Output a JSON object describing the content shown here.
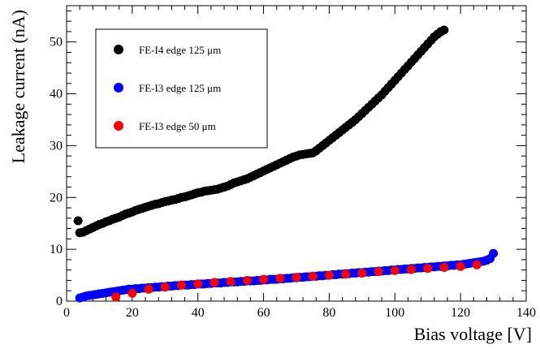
{
  "chart_data": {
    "type": "scatter",
    "xlabel": "Bias voltage [V]",
    "ylabel": "Leakage current (nA)",
    "xlim": [
      0,
      140
    ],
    "ylim": [
      0,
      57
    ],
    "xticks": [
      0,
      20,
      40,
      60,
      80,
      100,
      120,
      140
    ],
    "yticks": [
      0,
      10,
      20,
      30,
      40,
      50
    ],
    "grid": false,
    "legend_position": "top-left",
    "series": [
      {
        "name": "FE-I4 edge 125 μm",
        "color": "#000000",
        "points": [
          [
            3.5,
            15.5
          ],
          [
            4,
            13.2
          ],
          [
            5,
            13.3
          ],
          [
            6,
            13.6
          ],
          [
            7,
            13.9
          ],
          [
            8,
            14.2
          ],
          [
            9,
            14.5
          ],
          [
            10,
            14.8
          ],
          [
            11,
            15.0
          ],
          [
            12,
            15.3
          ],
          [
            13,
            15.5
          ],
          [
            14,
            15.8
          ],
          [
            15,
            16.0
          ],
          [
            16,
            16.2
          ],
          [
            17,
            16.5
          ],
          [
            18,
            16.8
          ],
          [
            19,
            17.0
          ],
          [
            20,
            17.2
          ],
          [
            21,
            17.5
          ],
          [
            22,
            17.7
          ],
          [
            23,
            17.9
          ],
          [
            24,
            18.1
          ],
          [
            25,
            18.3
          ],
          [
            26,
            18.5
          ],
          [
            27,
            18.7
          ],
          [
            28,
            18.8
          ],
          [
            29,
            19.0
          ],
          [
            30,
            19.2
          ],
          [
            31,
            19.3
          ],
          [
            32,
            19.5
          ],
          [
            33,
            19.6
          ],
          [
            34,
            19.8
          ],
          [
            35,
            20.0
          ],
          [
            36,
            20.1
          ],
          [
            37,
            20.3
          ],
          [
            38,
            20.5
          ],
          [
            39,
            20.7
          ],
          [
            40,
            20.9
          ],
          [
            41,
            21.0
          ],
          [
            42,
            21.2
          ],
          [
            43,
            21.3
          ],
          [
            44,
            21.4
          ],
          [
            45,
            21.5
          ],
          [
            46,
            21.6
          ],
          [
            47,
            21.8
          ],
          [
            48,
            22.0
          ],
          [
            49,
            22.2
          ],
          [
            50,
            22.5
          ],
          [
            51,
            22.8
          ],
          [
            52,
            23.0
          ],
          [
            53,
            23.2
          ],
          [
            54,
            23.4
          ],
          [
            55,
            23.6
          ],
          [
            56,
            23.9
          ],
          [
            57,
            24.2
          ],
          [
            58,
            24.5
          ],
          [
            59,
            24.8
          ],
          [
            60,
            25.1
          ],
          [
            61,
            25.4
          ],
          [
            62,
            25.7
          ],
          [
            63,
            26.0
          ],
          [
            64,
            26.3
          ],
          [
            65,
            26.6
          ],
          [
            66,
            26.9
          ],
          [
            67,
            27.2
          ],
          [
            68,
            27.5
          ],
          [
            69,
            27.8
          ],
          [
            70,
            28.0
          ],
          [
            71,
            28.2
          ],
          [
            72,
            28.3
          ],
          [
            73,
            28.4
          ],
          [
            74,
            28.5
          ],
          [
            75,
            28.6
          ],
          [
            76,
            29.0
          ],
          [
            77,
            29.5
          ],
          [
            78,
            30.0
          ],
          [
            79,
            30.5
          ],
          [
            80,
            31.0
          ],
          [
            81,
            31.5
          ],
          [
            82,
            32.0
          ],
          [
            83,
            32.5
          ],
          [
            84,
            33.0
          ],
          [
            85,
            33.5
          ],
          [
            86,
            34.0
          ],
          [
            87,
            34.5
          ],
          [
            88,
            35.0
          ],
          [
            89,
            35.6
          ],
          [
            90,
            36.2
          ],
          [
            91,
            36.8
          ],
          [
            92,
            37.4
          ],
          [
            93,
            38.0
          ],
          [
            94,
            38.6
          ],
          [
            95,
            39.2
          ],
          [
            96,
            39.8
          ],
          [
            97,
            40.5
          ],
          [
            98,
            41.2
          ],
          [
            99,
            41.9
          ],
          [
            100,
            42.6
          ],
          [
            101,
            43.3
          ],
          [
            102,
            44.0
          ],
          [
            103,
            44.7
          ],
          [
            104,
            45.4
          ],
          [
            105,
            46.1
          ],
          [
            106,
            46.8
          ],
          [
            107,
            47.5
          ],
          [
            108,
            48.2
          ],
          [
            109,
            48.9
          ],
          [
            110,
            49.6
          ],
          [
            111,
            50.3
          ],
          [
            112,
            51.0
          ],
          [
            113,
            51.5
          ],
          [
            114,
            52.0
          ],
          [
            115,
            52.3
          ]
        ]
      },
      {
        "name": "FE-I3 edge 125 μm",
        "color": "#0000ff",
        "points": [
          [
            4,
            0.6
          ],
          [
            5,
            0.8
          ],
          [
            6,
            1.0
          ],
          [
            7,
            1.1
          ],
          [
            8,
            1.2
          ],
          [
            9,
            1.3
          ],
          [
            10,
            1.4
          ],
          [
            11,
            1.5
          ],
          [
            12,
            1.6
          ],
          [
            13,
            1.7
          ],
          [
            14,
            1.8
          ],
          [
            15,
            1.9
          ],
          [
            16,
            2.0
          ],
          [
            17,
            2.1
          ],
          [
            18,
            2.2
          ],
          [
            19,
            2.3
          ],
          [
            20,
            2.3
          ],
          [
            21,
            2.4
          ],
          [
            22,
            2.4
          ],
          [
            23,
            2.5
          ],
          [
            24,
            2.5
          ],
          [
            25,
            2.6
          ],
          [
            26,
            2.6
          ],
          [
            27,
            2.7
          ],
          [
            28,
            2.7
          ],
          [
            29,
            2.8
          ],
          [
            30,
            2.8
          ],
          [
            31,
            2.9
          ],
          [
            32,
            2.9
          ],
          [
            33,
            3.0
          ],
          [
            34,
            3.0
          ],
          [
            35,
            3.1
          ],
          [
            36,
            3.1
          ],
          [
            37,
            3.1
          ],
          [
            38,
            3.2
          ],
          [
            39,
            3.2
          ],
          [
            40,
            3.3
          ],
          [
            41,
            3.3
          ],
          [
            42,
            3.3
          ],
          [
            43,
            3.4
          ],
          [
            44,
            3.4
          ],
          [
            45,
            3.5
          ],
          [
            46,
            3.5
          ],
          [
            47,
            3.5
          ],
          [
            48,
            3.6
          ],
          [
            49,
            3.6
          ],
          [
            50,
            3.7
          ],
          [
            51,
            3.7
          ],
          [
            52,
            3.7
          ],
          [
            53,
            3.8
          ],
          [
            54,
            3.8
          ],
          [
            55,
            3.9
          ],
          [
            56,
            3.9
          ],
          [
            57,
            3.9
          ],
          [
            58,
            4.0
          ],
          [
            59,
            4.0
          ],
          [
            60,
            4.1
          ],
          [
            61,
            4.1
          ],
          [
            62,
            4.2
          ],
          [
            63,
            4.2
          ],
          [
            64,
            4.2
          ],
          [
            65,
            4.3
          ],
          [
            66,
            4.3
          ],
          [
            67,
            4.4
          ],
          [
            68,
            4.4
          ],
          [
            69,
            4.5
          ],
          [
            70,
            4.5
          ],
          [
            71,
            4.6
          ],
          [
            72,
            4.6
          ],
          [
            73,
            4.7
          ],
          [
            74,
            4.7
          ],
          [
            75,
            4.8
          ],
          [
            76,
            4.8
          ],
          [
            77,
            4.9
          ],
          [
            78,
            4.9
          ],
          [
            79,
            5.0
          ],
          [
            80,
            5.0
          ],
          [
            81,
            5.1
          ],
          [
            82,
            5.1
          ],
          [
            83,
            5.2
          ],
          [
            84,
            5.2
          ],
          [
            85,
            5.3
          ],
          [
            86,
            5.3
          ],
          [
            87,
            5.4
          ],
          [
            88,
            5.4
          ],
          [
            89,
            5.5
          ],
          [
            90,
            5.5
          ],
          [
            91,
            5.6
          ],
          [
            92,
            5.6
          ],
          [
            93,
            5.7
          ],
          [
            94,
            5.7
          ],
          [
            95,
            5.8
          ],
          [
            96,
            5.8
          ],
          [
            97,
            5.9
          ],
          [
            98,
            5.9
          ],
          [
            99,
            6.0
          ],
          [
            100,
            6.0
          ],
          [
            101,
            6.1
          ],
          [
            102,
            6.1
          ],
          [
            103,
            6.2
          ],
          [
            104,
            6.2
          ],
          [
            105,
            6.3
          ],
          [
            106,
            6.3
          ],
          [
            107,
            6.4
          ],
          [
            108,
            6.4
          ],
          [
            109,
            6.5
          ],
          [
            110,
            6.5
          ],
          [
            111,
            6.6
          ],
          [
            112,
            6.6
          ],
          [
            113,
            6.7
          ],
          [
            114,
            6.7
          ],
          [
            115,
            6.8
          ],
          [
            116,
            6.8
          ],
          [
            117,
            6.9
          ],
          [
            118,
            6.9
          ],
          [
            119,
            7.0
          ],
          [
            120,
            7.0
          ],
          [
            121,
            7.1
          ],
          [
            122,
            7.2
          ],
          [
            123,
            7.3
          ],
          [
            124,
            7.4
          ],
          [
            125,
            7.5
          ],
          [
            126,
            7.6
          ],
          [
            127,
            7.7
          ],
          [
            128,
            7.9
          ],
          [
            129,
            8.2
          ],
          [
            130,
            9.2
          ]
        ]
      },
      {
        "name": "FE-I3 edge 50 μm",
        "color": "#ff0000",
        "points": [
          [
            15,
            0.8
          ],
          [
            20,
            1.5
          ],
          [
            25,
            2.3
          ],
          [
            30,
            2.7
          ],
          [
            35,
            3.1
          ],
          [
            40,
            3.3
          ],
          [
            45,
            3.6
          ],
          [
            50,
            3.8
          ],
          [
            55,
            4.0
          ],
          [
            60,
            4.2
          ],
          [
            65,
            4.4
          ],
          [
            70,
            4.6
          ],
          [
            75,
            4.8
          ],
          [
            80,
            5.0
          ],
          [
            85,
            5.2
          ],
          [
            90,
            5.4
          ],
          [
            95,
            5.7
          ],
          [
            100,
            5.9
          ],
          [
            105,
            6.1
          ],
          [
            110,
            6.3
          ],
          [
            115,
            6.5
          ],
          [
            120,
            6.7
          ],
          [
            125,
            7.0
          ]
        ]
      }
    ]
  }
}
